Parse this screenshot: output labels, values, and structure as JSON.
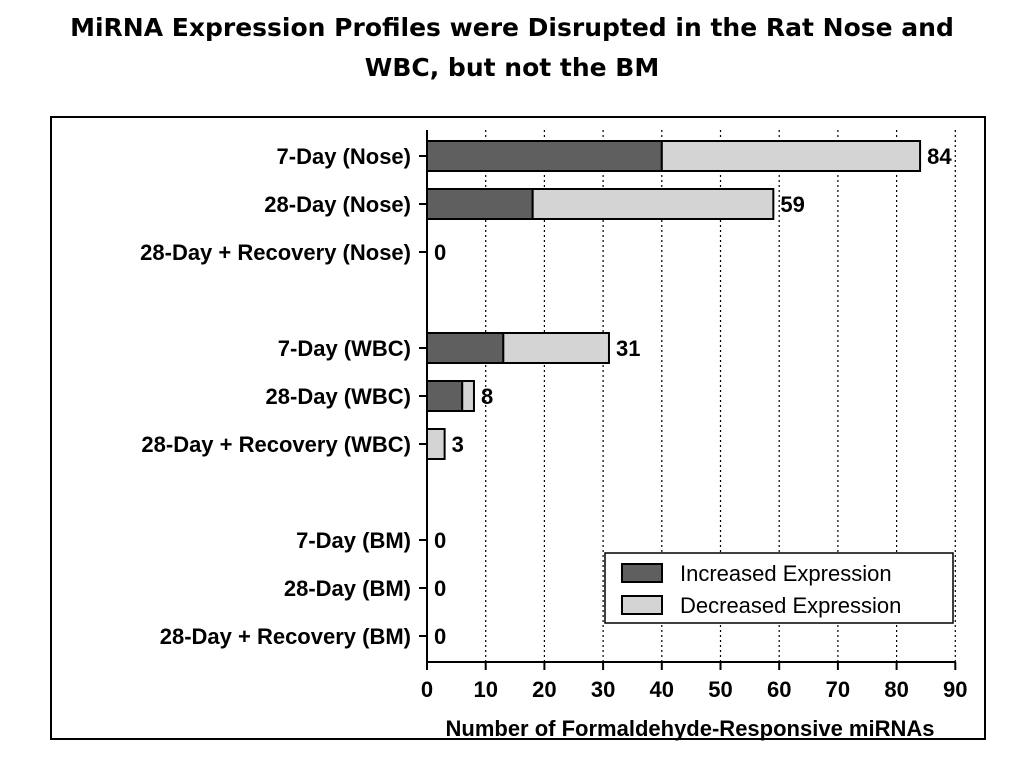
{
  "slide": {
    "title_line1": "MiRNA Expression Profiles were Disrupted in the Rat Nose and",
    "title_line2": "WBC, but not the BM"
  },
  "chart_data": {
    "type": "bar",
    "orientation": "horizontal",
    "stacked": true,
    "title": "",
    "xlabel": "Number of Formaldehyde-Responsive miRNAs",
    "ylabel": "",
    "xlim": [
      0,
      90
    ],
    "xticks": [
      0,
      10,
      20,
      30,
      40,
      50,
      60,
      70,
      80,
      90
    ],
    "grid": "vertical dotted",
    "legend_position": "bottom-right",
    "categories": [
      "7-Day (Nose)",
      "28-Day (Nose)",
      "28-Day + Recovery (Nose)",
      "7-Day (WBC)",
      "28-Day (WBC)",
      "28-Day + Recovery (WBC)",
      "7-Day (BM)",
      "28-Day (BM)",
      "28-Day + Recovery (BM)"
    ],
    "series": [
      {
        "name": "Increased Expression",
        "color": "#5f5f5f",
        "values": [
          40,
          18,
          0,
          13,
          6,
          0,
          0,
          0,
          0
        ]
      },
      {
        "name": "Decreased Expression",
        "color": "#d4d4d4",
        "values": [
          44,
          41,
          0,
          18,
          2,
          3,
          0,
          0,
          0
        ]
      }
    ],
    "totals": [
      84,
      59,
      0,
      31,
      8,
      3,
      0,
      0,
      0
    ]
  }
}
